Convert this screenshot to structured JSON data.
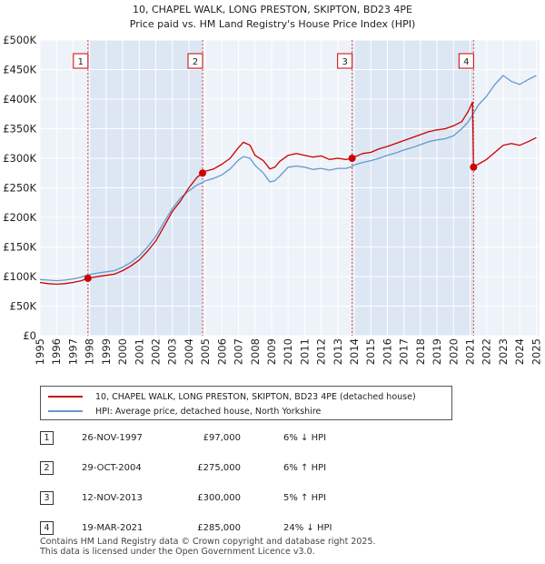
{
  "title_line1": "10, CHAPEL WALK, LONG PRESTON, SKIPTON, BD23 4PE",
  "title_line2": "Price paid vs. HM Land Registry's House Price Index (HPI)",
  "chart_data": {
    "type": "line",
    "title": "10, CHAPEL WALK, LONG PRESTON, SKIPTON, BD23 4PE — Price paid vs. HM Land Registry's House Price Index (HPI)",
    "xlim": [
      1995,
      2025.2
    ],
    "ylim": [
      0,
      500000
    ],
    "yticks": [
      {
        "value": 0,
        "label": "£0"
      },
      {
        "value": 50000,
        "label": "£50K"
      },
      {
        "value": 100000,
        "label": "£100K"
      },
      {
        "value": 150000,
        "label": "£150K"
      },
      {
        "value": 200000,
        "label": "£200K"
      },
      {
        "value": 250000,
        "label": "£250K"
      },
      {
        "value": 300000,
        "label": "£300K"
      },
      {
        "value": 350000,
        "label": "£350K"
      },
      {
        "value": 400000,
        "label": "£400K"
      },
      {
        "value": 450000,
        "label": "£450K"
      },
      {
        "value": 500000,
        "label": "£500K"
      }
    ],
    "xticks": [
      "1995",
      "1996",
      "1997",
      "1998",
      "1999",
      "2000",
      "2001",
      "2002",
      "2003",
      "2004",
      "2005",
      "2006",
      "2007",
      "2008",
      "2009",
      "2010",
      "2011",
      "2012",
      "2013",
      "2014",
      "2015",
      "2016",
      "2017",
      "2018",
      "2019",
      "2020",
      "2021",
      "2022",
      "2023",
      "2024",
      "2025"
    ],
    "series": [
      {
        "name": "10, CHAPEL WALK, LONG PRESTON, SKIPTON, BD23 4PE (detached house)",
        "color": "#cc0000",
        "x": [
          1995.0,
          1995.5,
          1996.0,
          1996.5,
          1997.0,
          1997.5,
          1997.9,
          1998.5,
          1999.0,
          1999.5,
          2000.0,
          2000.5,
          2001.0,
          2001.5,
          2002.0,
          2002.5,
          2003.0,
          2003.5,
          2004.0,
          2004.5,
          2004.83,
          2005.0,
          2005.5,
          2006.0,
          2006.5,
          2007.0,
          2007.3,
          2007.7,
          2008.0,
          2008.5,
          2008.9,
          2009.2,
          2009.5,
          2010.0,
          2010.5,
          2011.0,
          2011.5,
          2012.0,
          2012.5,
          2013.0,
          2013.5,
          2013.87,
          2014.0,
          2014.5,
          2015.0,
          2015.5,
          2016.0,
          2016.5,
          2017.0,
          2017.5,
          2018.0,
          2018.5,
          2019.0,
          2019.5,
          2020.0,
          2020.5,
          2020.9,
          2021.15,
          2021.21,
          2021.5,
          2022.0,
          2022.5,
          2023.0,
          2023.5,
          2024.0,
          2024.5,
          2025.0
        ],
        "y": [
          90000,
          88000,
          87000,
          88000,
          90000,
          93000,
          97000,
          100000,
          102000,
          104000,
          110000,
          118000,
          128000,
          143000,
          160000,
          185000,
          210000,
          228000,
          250000,
          268000,
          275000,
          278000,
          282000,
          290000,
          300000,
          318000,
          327000,
          322000,
          305000,
          296000,
          282000,
          285000,
          295000,
          305000,
          308000,
          305000,
          302000,
          304000,
          298000,
          300000,
          298000,
          300000,
          302000,
          308000,
          310000,
          316000,
          320000,
          325000,
          330000,
          335000,
          340000,
          345000,
          348000,
          350000,
          355000,
          362000,
          380000,
          395000,
          285000,
          290000,
          298000,
          310000,
          322000,
          325000,
          322000,
          328000,
          335000
        ]
      },
      {
        "name": "HPI: Average price, detached house, North Yorkshire",
        "color": "#6699cc",
        "x": [
          1995.0,
          1995.5,
          1996.0,
          1996.5,
          1997.0,
          1997.5,
          1997.9,
          1998.5,
          1999.0,
          1999.5,
          2000.0,
          2000.5,
          2001.0,
          2001.5,
          2002.0,
          2002.5,
          2003.0,
          2003.5,
          2004.0,
          2004.5,
          2004.83,
          2005.0,
          2005.5,
          2006.0,
          2006.5,
          2007.0,
          2007.3,
          2007.7,
          2008.0,
          2008.5,
          2008.9,
          2009.2,
          2009.5,
          2010.0,
          2010.5,
          2011.0,
          2011.5,
          2012.0,
          2012.5,
          2013.0,
          2013.5,
          2013.87,
          2014.0,
          2014.5,
          2015.0,
          2015.5,
          2016.0,
          2016.5,
          2017.0,
          2017.5,
          2018.0,
          2018.5,
          2019.0,
          2019.5,
          2020.0,
          2020.5,
          2020.9,
          2021.21,
          2021.5,
          2022.0,
          2022.5,
          2023.0,
          2023.5,
          2024.0,
          2024.5,
          2025.0
        ],
        "y": [
          95000,
          94000,
          93000,
          94000,
          96000,
          99000,
          103000,
          106000,
          108000,
          110000,
          116000,
          124000,
          135000,
          150000,
          168000,
          192000,
          215000,
          233000,
          245000,
          255000,
          259000,
          262000,
          266000,
          272000,
          282000,
          297000,
          303000,
          300000,
          288000,
          275000,
          260000,
          262000,
          270000,
          285000,
          287000,
          285000,
          281000,
          283000,
          280000,
          283000,
          283000,
          286000,
          289000,
          293000,
          296000,
          300000,
          305000,
          309000,
          314000,
          318000,
          323000,
          328000,
          331000,
          333000,
          338000,
          350000,
          362000,
          376000,
          390000,
          405000,
          425000,
          440000,
          430000,
          425000,
          433000,
          440000
        ]
      }
    ],
    "markers": [
      {
        "label": "1",
        "x": 1997.9,
        "y": 97000
      },
      {
        "label": "2",
        "x": 2004.83,
        "y": 275000
      },
      {
        "label": "3",
        "x": 2013.87,
        "y": 300000
      },
      {
        "label": "4",
        "x": 2021.21,
        "y": 285000
      }
    ],
    "shaded_periods": [
      [
        1997.9,
        2004.83
      ],
      [
        2013.87,
        2021.21
      ]
    ]
  },
  "legend": {
    "property": "10, CHAPEL WALK, LONG PRESTON, SKIPTON, BD23 4PE (detached house)",
    "hpi": "HPI: Average price, detached house, North Yorkshire",
    "property_color": "#cc0000",
    "hpi_color": "#6699cc"
  },
  "transactions": [
    {
      "num": "1",
      "date": "26-NOV-1997",
      "price": "£97,000",
      "hpi": "6% ↓ HPI"
    },
    {
      "num": "2",
      "date": "29-OCT-2004",
      "price": "£275,000",
      "hpi": "6% ↑ HPI"
    },
    {
      "num": "3",
      "date": "12-NOV-2013",
      "price": "£300,000",
      "hpi": "5% ↑ HPI"
    },
    {
      "num": "4",
      "date": "19-MAR-2021",
      "price": "£285,000",
      "hpi": "24% ↓ HPI"
    }
  ],
  "footer": {
    "line1": "Contains HM Land Registry data © Crown copyright and database right 2025.",
    "line2": "This data is licensed under the Open Government Licence v3.0."
  }
}
